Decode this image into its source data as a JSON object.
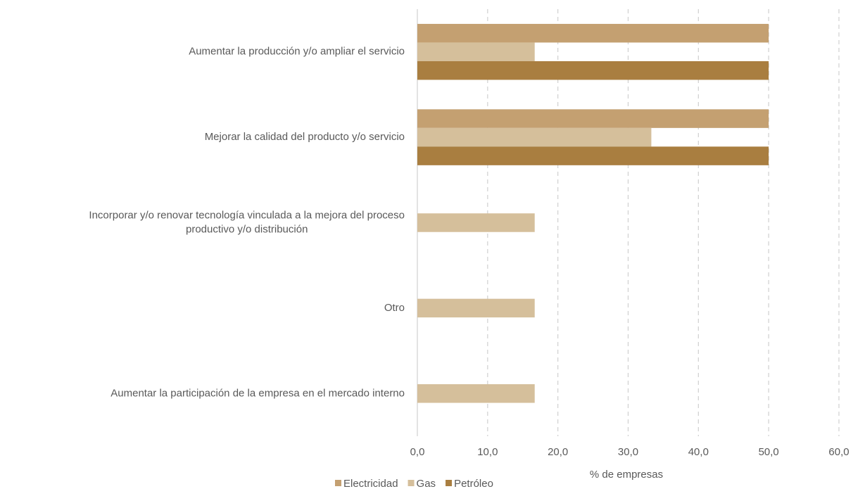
{
  "chart_data": {
    "type": "bar",
    "orientation": "horizontal",
    "categories": [
      "Aumentar la producción y/o ampliar el servicio",
      "Mejorar la calidad del producto y/o servicio",
      "Incorporar y/o renovar tecnología vinculada a la mejora del proceso\nproductivo y/o distribución",
      "Otro",
      "Aumentar la participación de la empresa en el mercado interno"
    ],
    "series": [
      {
        "name": "Electricidad",
        "color": "#c4a071",
        "values": [
          50,
          50,
          0,
          0,
          0
        ]
      },
      {
        "name": "Gas",
        "color": "#d5bf9b",
        "values": [
          16.7,
          33.3,
          16.7,
          16.7,
          16.7
        ]
      },
      {
        "name": "Petróleo",
        "color": "#a97e40",
        "values": [
          50,
          50,
          0,
          0,
          0
        ]
      }
    ],
    "x_label": "% de empresas",
    "xlim": [
      0,
      60
    ],
    "xticks": [
      {
        "value": 0,
        "label": "0,0"
      },
      {
        "value": 10,
        "label": "10,0"
      },
      {
        "value": 20,
        "label": "20,0"
      },
      {
        "value": 30,
        "label": "30,0"
      },
      {
        "value": 40,
        "label": "40,0"
      },
      {
        "value": 50,
        "label": "50,0"
      },
      {
        "value": 60,
        "label": "60,0"
      }
    ],
    "grid": true,
    "legend": "bottom"
  }
}
